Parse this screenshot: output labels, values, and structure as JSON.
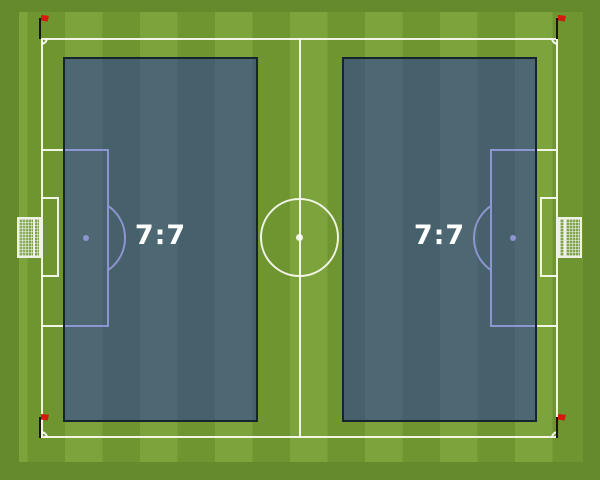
{
  "board": {
    "type": "soccer-pitch-tactics-diagram",
    "zones": [
      {
        "id": "zone-left",
        "label": "7:7"
      },
      {
        "id": "zone-right",
        "label": "7:7"
      }
    ],
    "icons": [
      "corner-flag-icon",
      "goal-icon",
      "center-circle",
      "penalty-spot"
    ],
    "colors": {
      "grass_dark": "#6f9530",
      "grass_light": "#7ca33c",
      "out_of_bounds": "#648a2b",
      "marking_line": "#fafcf5",
      "zone_fill_blend": "#4a6574",
      "zone_border": "#16242e",
      "flag_red": "#d11b10",
      "label_text": "#ffffff"
    }
  }
}
